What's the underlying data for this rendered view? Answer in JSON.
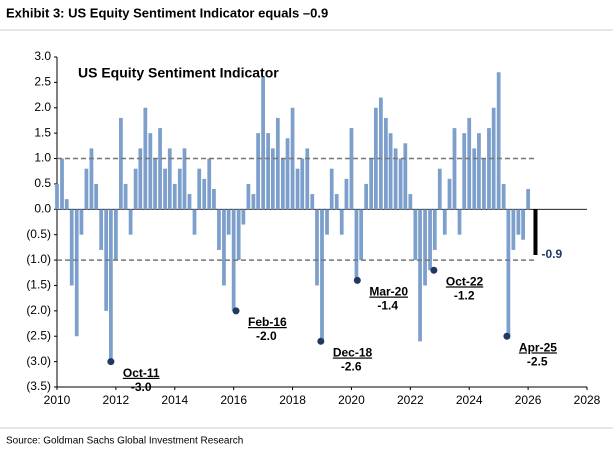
{
  "chart_data": {
    "type": "bar",
    "title": "Exhibit 3: US Equity Sentiment Indicator equals –0.9",
    "subtitle": "US Equity Sentiment Indicator",
    "source": "Source: Goldman Sachs Global Investment Research",
    "color": "#7d9fcb",
    "x": [
      2010,
      2010.17,
      2010.33,
      2010.5,
      2010.67,
      2010.83,
      2011,
      2011.17,
      2011.33,
      2011.5,
      2011.67,
      2011.83,
      2012,
      2012.17,
      2012.33,
      2012.5,
      2012.67,
      2012.83,
      2013,
      2013.17,
      2013.33,
      2013.5,
      2013.67,
      2013.83,
      2014,
      2014.17,
      2014.33,
      2014.5,
      2014.67,
      2014.83,
      2015,
      2015.17,
      2015.33,
      2015.5,
      2015.67,
      2015.83,
      2016,
      2016.17,
      2016.33,
      2016.5,
      2016.67,
      2016.83,
      2017,
      2017.17,
      2017.33,
      2017.5,
      2017.67,
      2017.83,
      2018,
      2018.17,
      2018.33,
      2018.5,
      2018.67,
      2018.83,
      2019,
      2019.17,
      2019.33,
      2019.5,
      2019.67,
      2019.83,
      2020,
      2020.17,
      2020.33,
      2020.5,
      2020.67,
      2020.83,
      2021,
      2021.17,
      2021.33,
      2021.5,
      2021.67,
      2021.83,
      2022,
      2022.17,
      2022.33,
      2022.5,
      2022.67,
      2022.83,
      2023,
      2023.17,
      2023.33,
      2023.5,
      2023.67,
      2023.83,
      2024,
      2024.17,
      2024.33,
      2024.5,
      2024.67,
      2024.83,
      2025,
      2025.17,
      2025.33,
      2025.5,
      2025.67,
      2025.83,
      2026
    ],
    "values": [
      0.5,
      1.0,
      0.2,
      -1.5,
      -2.5,
      -0.5,
      0.8,
      1.2,
      0.5,
      -0.8,
      -2.0,
      -3.0,
      -1.0,
      1.8,
      0.5,
      -0.5,
      0.8,
      1.2,
      2.0,
      1.5,
      1.0,
      1.6,
      0.8,
      1.2,
      0.5,
      0.8,
      1.2,
      0.3,
      -0.5,
      0.8,
      0.6,
      1.0,
      0.4,
      -0.8,
      -1.5,
      -0.5,
      -2.0,
      -1.0,
      -0.3,
      0.5,
      0.3,
      1.5,
      2.6,
      1.5,
      1.2,
      1.8,
      1.0,
      1.4,
      2.0,
      0.8,
      1.0,
      1.2,
      0.3,
      -1.5,
      -2.6,
      -0.5,
      0.8,
      0.3,
      -0.5,
      0.6,
      1.6,
      -1.4,
      -1.0,
      0.5,
      1.0,
      2.0,
      2.2,
      1.8,
      1.5,
      1.2,
      1.0,
      1.3,
      0.3,
      -1.0,
      -2.6,
      -1.5,
      -1.2,
      -0.8,
      0.8,
      -0.5,
      0.6,
      1.6,
      -0.5,
      1.5,
      1.8,
      1.2,
      1.5,
      1.0,
      1.6,
      2.0,
      2.7,
      0.5,
      -2.5,
      -0.8,
      -0.5,
      -0.6,
      0.4
    ],
    "current": {
      "x": 2026.25,
      "value": -0.9,
      "color": "#000000"
    },
    "reference_lines": [
      1,
      -1
    ],
    "annotations": [
      {
        "label": "Oct-11",
        "x": 2011.83,
        "value": -3,
        "value_label": "-3.0"
      },
      {
        "label": "Feb-16",
        "x": 2016.08,
        "value": -2,
        "value_label": "-2.0"
      },
      {
        "label": "Dec-18",
        "x": 2018.96,
        "value": -2.6
      },
      {
        "label": "Mar-20",
        "x": 2020.2,
        "value": -1.4
      },
      {
        "label": "Oct-22",
        "x": 2022.8,
        "value": -1.2
      },
      {
        "label": "Apr-25",
        "x": 2025.28,
        "value": -2.5
      }
    ],
    "xlim": [
      2010,
      2028
    ],
    "xticks": [
      2010,
      2012,
      2014,
      2016,
      2018,
      2020,
      2022,
      2024,
      2026,
      2028
    ],
    "ylim": [
      -3.5,
      3.0
    ],
    "yticks": [
      {
        "value": 3,
        "label": "3.0"
      },
      {
        "value": 2.5,
        "label": "2.5"
      },
      {
        "value": 2,
        "label": "2.0"
      },
      {
        "value": 1.5,
        "label": "1.5"
      },
      {
        "value": 1,
        "label": "1.0"
      },
      {
        "value": 0.5,
        "label": "0.5"
      },
      {
        "value": 0,
        "label": "0.0"
      },
      {
        "value": -0.5,
        "label": "(0.5)"
      },
      {
        "value": -1,
        "label": "(1.0)"
      },
      {
        "value": -1.5,
        "label": "(1.5)"
      },
      {
        "value": -2,
        "label": "(2.0)"
      },
      {
        "value": -2.5,
        "label": "(2.5)"
      },
      {
        "value": -3,
        "label": "(3.0)"
      },
      {
        "value": -3.5,
        "label": "(3.5)"
      }
    ]
  }
}
